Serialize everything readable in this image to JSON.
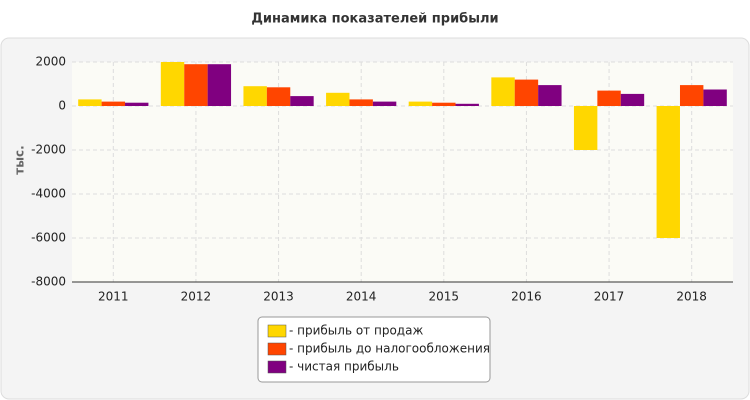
{
  "chart_data": {
    "type": "bar",
    "title": "Динамика показателей прибыли",
    "y_label": "тыс.",
    "categories": [
      "2011",
      "2012",
      "2013",
      "2014",
      "2015",
      "2016",
      "2017",
      "2018"
    ],
    "series": [
      {
        "name": "- прибыль от продаж",
        "color": "#ffd700",
        "values": [
          300,
          2000,
          900,
          600,
          200,
          1300,
          -2000,
          -6000
        ]
      },
      {
        "name": "- прибыль до налогообложения",
        "color": "#ff4500",
        "values": [
          200,
          1900,
          850,
          300,
          150,
          1200,
          700,
          950
        ]
      },
      {
        "name": "- чистая прибыль",
        "color": "#800080",
        "values": [
          150,
          1900,
          450,
          200,
          100,
          950,
          550,
          750
        ]
      }
    ],
    "ylim": [
      -8000,
      2000
    ],
    "yticks": [
      -8000,
      -6000,
      -4000,
      -2000,
      0,
      2000
    ],
    "grid": true
  }
}
